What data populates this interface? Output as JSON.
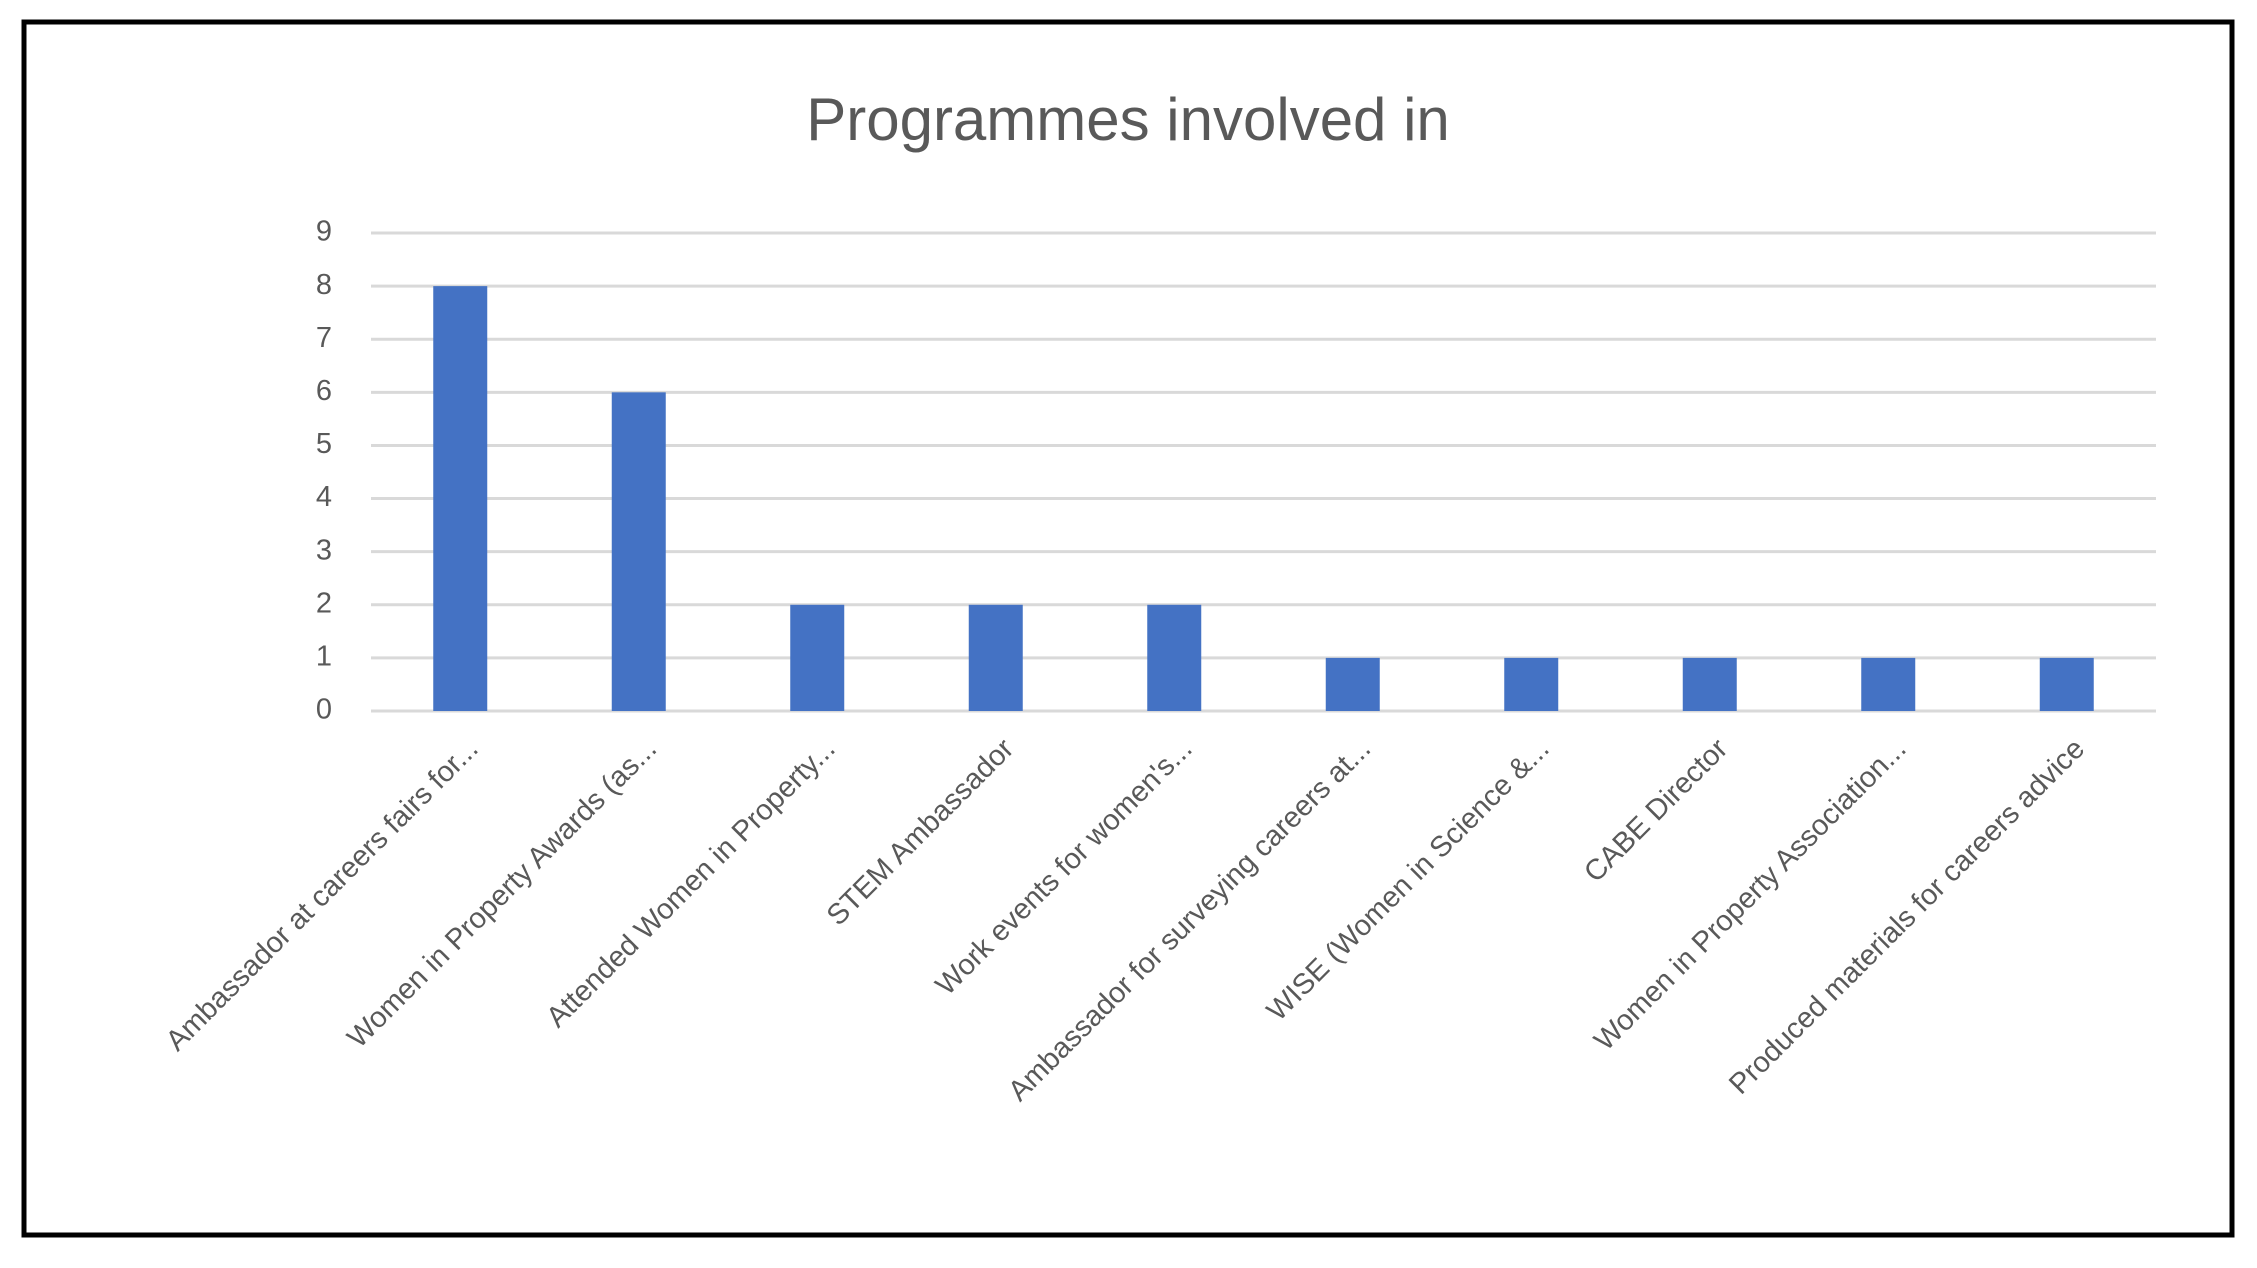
{
  "chart_data": {
    "type": "bar",
    "title": "Programmes involved in",
    "categories": [
      "Ambassador at careers fairs for...",
      "Women in Property Awards (as...",
      "Attended Women in Property...",
      "STEM Ambassador",
      "Work events for women's...",
      "Ambassador for surveying careers at...",
      "WISE (Women in Science &...",
      "CABE Director",
      "Women in Property Association...",
      "Produced materials for careers advice"
    ],
    "values": [
      8,
      6,
      2,
      2,
      2,
      1,
      1,
      1,
      1,
      1
    ],
    "color": "#4472c4",
    "ylim": [
      0,
      9
    ],
    "yticks": [
      0,
      1,
      2,
      3,
      4,
      5,
      6,
      7,
      8,
      9
    ],
    "grid": true
  }
}
